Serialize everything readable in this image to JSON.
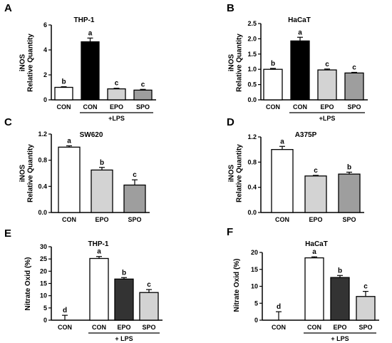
{
  "chart_data": [
    {
      "panel": "A",
      "type": "bar",
      "title": "THP-1",
      "ylabel_lines": [
        "iNOS",
        "Relative Quantity"
      ],
      "categories": [
        "CON",
        "CON",
        "EPO",
        "SPO"
      ],
      "values": [
        1.0,
        4.65,
        0.88,
        0.78
      ],
      "errors": [
        0.05,
        0.3,
        0.05,
        0.06
      ],
      "letters": [
        "b",
        "a",
        "c",
        "c"
      ],
      "fills": [
        "#ffffff",
        "#000000",
        "#d3d3d3",
        "#9e9e9e"
      ],
      "ylim": [
        0,
        6
      ],
      "yticks": [
        "0",
        "2",
        "4",
        "6"
      ],
      "ytick_values": [
        0,
        2,
        4,
        6
      ],
      "group_label": "+LPS",
      "group_start": 1
    },
    {
      "panel": "B",
      "type": "bar",
      "title": "HaCaT",
      "ylabel_lines": [
        "iNOS",
        "Relative Quantity"
      ],
      "categories": [
        "CON",
        "CON",
        "EPO",
        "SPO"
      ],
      "values": [
        1.0,
        1.93,
        0.98,
        0.88
      ],
      "errors": [
        0.03,
        0.12,
        0.03,
        0.02
      ],
      "letters": [
        "b",
        "a",
        "c",
        "c"
      ],
      "fills": [
        "#ffffff",
        "#000000",
        "#d3d3d3",
        "#9e9e9e"
      ],
      "ylim": [
        0,
        2.5
      ],
      "yticks": [
        "0.0",
        "0.5",
        "1.0",
        "1.5",
        "2.0",
        "2.5"
      ],
      "ytick_values": [
        0,
        0.5,
        1.0,
        1.5,
        2.0,
        2.5
      ],
      "group_label": "+LPS",
      "group_start": 1
    },
    {
      "panel": "C",
      "type": "bar",
      "title": "SW620",
      "ylabel_lines": [
        "iNOS",
        "Relative Quantity"
      ],
      "categories": [
        "CON",
        "EPO",
        "SPO"
      ],
      "values": [
        1.0,
        0.65,
        0.42
      ],
      "errors": [
        0.02,
        0.04,
        0.08
      ],
      "letters": [
        "a",
        "b",
        "c"
      ],
      "fills": [
        "#ffffff",
        "#d3d3d3",
        "#9e9e9e"
      ],
      "ylim": [
        0,
        1.2
      ],
      "yticks": [
        "0.0",
        "0.4",
        "0.8",
        "1.2"
      ],
      "ytick_values": [
        0,
        0.4,
        0.8,
        1.2
      ]
    },
    {
      "panel": "D",
      "type": "bar",
      "title": "A375P",
      "ylabel_lines": [
        "iNOS",
        "Relative Quantity"
      ],
      "categories": [
        "CON",
        "EPO",
        "SPO"
      ],
      "values": [
        1.0,
        0.58,
        0.61
      ],
      "errors": [
        0.05,
        0.01,
        0.03
      ],
      "letters": [
        "a",
        "c",
        "b"
      ],
      "fills": [
        "#ffffff",
        "#d3d3d3",
        "#9e9e9e"
      ],
      "ylim": [
        0,
        1.2
      ],
      "yticks": [
        "0.0",
        "0.4",
        "0.8",
        "1.2"
      ],
      "ytick_values": [
        0,
        0.4,
        0.8,
        1.2
      ]
    },
    {
      "panel": "E",
      "type": "bar",
      "title": "THP-1",
      "ylabel_lines": [
        "Nitrate Oxid  (%)"
      ],
      "categories": [
        "CON",
        "CON",
        "EPO",
        "SPO"
      ],
      "values": [
        0,
        25.2,
        16.8,
        11.3
      ],
      "errors": [
        2.0,
        0.8,
        0.6,
        1.2
      ],
      "letters": [
        "d",
        "a",
        "b",
        "c"
      ],
      "fills": [
        "#ffffff",
        "#ffffff",
        "#333333",
        "#d3d3d3"
      ],
      "ylim": [
        0,
        30
      ],
      "yticks": [
        "0",
        "5",
        "10",
        "15",
        "20",
        "25",
        "30"
      ],
      "ytick_values": [
        0,
        5,
        10,
        15,
        20,
        25,
        30
      ],
      "group_label": "+ LPS",
      "group_start": 1
    },
    {
      "panel": "F",
      "type": "bar",
      "title": "HaCaT",
      "ylabel_lines": [
        "Nitrate Oxid  (%)"
      ],
      "categories": [
        "CON",
        "CON",
        "EPO",
        "SPO"
      ],
      "values": [
        0,
        18.4,
        12.6,
        7.0
      ],
      "errors": [
        2.5,
        0.3,
        0.6,
        1.5
      ],
      "letters": [
        "d",
        "a",
        "b",
        "c"
      ],
      "fills": [
        "#ffffff",
        "#ffffff",
        "#333333",
        "#d3d3d3"
      ],
      "ylim": [
        0,
        20
      ],
      "yticks": [
        "0",
        "5",
        "10",
        "15",
        "20"
      ],
      "ytick_values": [
        0,
        5,
        10,
        15,
        20
      ],
      "group_label": "+ LPS",
      "group_start": 1
    }
  ]
}
